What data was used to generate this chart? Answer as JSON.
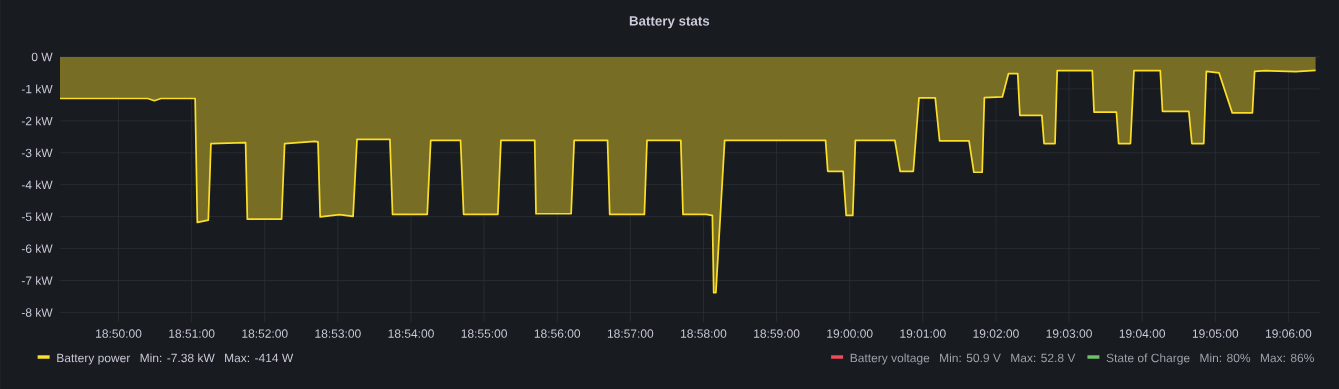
{
  "chart_data": {
    "type": "area",
    "title": "Battery stats",
    "x": [
      18.82,
      18.84,
      18.8415,
      18.843,
      18.8508,
      18.8513,
      18.8538,
      18.8544,
      18.8623,
      18.8627,
      18.8705,
      18.8712,
      18.878,
      18.8788,
      18.8793,
      18.8837,
      18.8868,
      18.8877,
      18.8952,
      18.8958,
      18.9037,
      18.9045,
      18.9113,
      18.912,
      18.9198,
      18.9205,
      18.9282,
      18.9285,
      18.9365,
      18.9372,
      18.9448,
      18.9453,
      18.9532,
      18.9538,
      18.9615,
      18.962,
      18.9672,
      18.9687,
      18.969,
      18.9695,
      18.9715,
      18.9945,
      18.995,
      18.9985,
      18.9992,
      19.0007,
      19.0013,
      19.0103,
      19.0115,
      19.0145,
      19.0158,
      19.0195,
      19.0205,
      19.0272,
      19.0283,
      19.0302,
      19.0307,
      19.0348,
      19.0362,
      19.0383,
      19.0388,
      19.0438,
      19.0443,
      19.0468,
      19.0473,
      19.0553,
      19.0557,
      19.0608,
      19.0613,
      19.064,
      19.0648,
      19.0708,
      19.0713,
      19.0773,
      19.078,
      19.0807,
      19.0813,
      19.0842,
      19.0872,
      19.0918,
      19.0923,
      19.0948,
      19.1017,
      19.1062
    ],
    "series": [
      {
        "name": "Battery power",
        "color": "#fade2a",
        "values": [
          -1.3,
          -1.3,
          -1.37,
          -1.3,
          -1.3,
          -5.18,
          -5.11,
          -2.71,
          -2.68,
          -5.08,
          -5.08,
          -2.71,
          -2.64,
          -2.66,
          -5.01,
          -4.94,
          -4.99,
          -2.58,
          -2.58,
          -4.93,
          -4.93,
          -2.61,
          -2.61,
          -4.93,
          -4.93,
          -2.61,
          -2.61,
          -4.91,
          -4.91,
          -2.61,
          -2.61,
          -4.93,
          -4.93,
          -2.61,
          -2.61,
          -4.93,
          -4.93,
          -4.96,
          -7.38,
          -7.38,
          -2.61,
          -2.61,
          -3.58,
          -3.58,
          -4.96,
          -4.96,
          -2.61,
          -2.61,
          -3.58,
          -3.58,
          -1.28,
          -1.28,
          -2.63,
          -2.63,
          -3.61,
          -3.61,
          -1.27,
          -1.25,
          -0.52,
          -0.52,
          -1.83,
          -1.83,
          -2.71,
          -2.71,
          -0.43,
          -0.43,
          -1.73,
          -1.73,
          -2.71,
          -2.71,
          -0.43,
          -0.43,
          -1.7,
          -1.7,
          -2.71,
          -2.71,
          -0.45,
          -0.5,
          -1.75,
          -1.75,
          -0.45,
          -0.43,
          -0.46,
          -0.42
        ]
      },
      {
        "name": "Battery voltage",
        "color": "#f2495c",
        "values": [
          null,
          null,
          null,
          null,
          null,
          null,
          null,
          null,
          null,
          null,
          null,
          null,
          null,
          null,
          null,
          null,
          null,
          null,
          null,
          null,
          null,
          null,
          null,
          null,
          null,
          null,
          null,
          null,
          null,
          null,
          null,
          null,
          null,
          null,
          null,
          null,
          null,
          null,
          null,
          null,
          null,
          null,
          null,
          null,
          null,
          null,
          null,
          null,
          null,
          null,
          null,
          null,
          null,
          null,
          null,
          null,
          null,
          null,
          null,
          null,
          null,
          null,
          null,
          null,
          null,
          null,
          null,
          null,
          null,
          null,
          null,
          null,
          null,
          null,
          null,
          null,
          null,
          null,
          null,
          null,
          null,
          null,
          null,
          null
        ]
      },
      {
        "name": "State of Charge",
        "color": "#73bf69",
        "values": [
          null,
          null,
          null,
          null,
          null,
          null,
          null,
          null,
          null,
          null,
          null,
          null,
          null,
          null,
          null,
          null,
          null,
          null,
          null,
          null,
          null,
          null,
          null,
          null,
          null,
          null,
          null,
          null,
          null,
          null,
          null,
          null,
          null,
          null,
          null,
          null,
          null,
          null,
          null,
          null,
          null,
          null,
          null,
          null,
          null,
          null,
          null,
          null,
          null,
          null,
          null,
          null,
          null,
          null,
          null,
          null,
          null,
          null,
          null,
          null,
          null,
          null,
          null,
          null,
          null,
          null,
          null,
          null,
          null,
          null,
          null,
          null,
          null,
          null,
          null,
          null,
          null,
          null,
          null,
          null,
          null,
          null,
          null,
          null
        ]
      }
    ],
    "annotations": [
      "Min: -7.38 kW",
      "Max: -414 W",
      "Min: 50.9 V",
      "Max: 52.8 V",
      "Min: 80%",
      "Max: 86%"
    ],
    "xlim": [
      18.82,
      19.1072
    ],
    "xticks": [
      {
        "value": 18.833333,
        "label": "18:50:00"
      },
      {
        "value": 18.85,
        "label": "18:51:00"
      },
      {
        "value": 18.866667,
        "label": "18:52:00"
      },
      {
        "value": 18.883333,
        "label": "18:53:00"
      },
      {
        "value": 18.9,
        "label": "18:54:00"
      },
      {
        "value": 18.916667,
        "label": "18:55:00"
      },
      {
        "value": 18.933333,
        "label": "18:56:00"
      },
      {
        "value": 18.95,
        "label": "18:57:00"
      },
      {
        "value": 18.966667,
        "label": "18:58:00"
      },
      {
        "value": 18.983333,
        "label": "18:59:00"
      },
      {
        "value": 19.0,
        "label": "19:00:00"
      },
      {
        "value": 19.016667,
        "label": "19:01:00"
      },
      {
        "value": 19.033333,
        "label": "19:02:00"
      },
      {
        "value": 19.05,
        "label": "19:03:00"
      },
      {
        "value": 19.066667,
        "label": "19:04:00"
      },
      {
        "value": 19.083333,
        "label": "19:05:00"
      },
      {
        "value": 19.1,
        "label": "19:06:00"
      }
    ],
    "ylim": [
      -8.3,
      0
    ],
    "yticks": [
      {
        "value": 0,
        "label": "0 W"
      },
      {
        "value": -1,
        "label": "-1 kW"
      },
      {
        "value": -2,
        "label": "-2 kW"
      },
      {
        "value": -3,
        "label": "-3 kW"
      },
      {
        "value": -4,
        "label": "-4 kW"
      },
      {
        "value": -5,
        "label": "-5 kW"
      },
      {
        "value": -6,
        "label": "-6 kW"
      },
      {
        "value": -7,
        "label": "-7 kW"
      },
      {
        "value": -8,
        "label": "-8 kW"
      }
    ],
    "grid": true,
    "legend": "bottom"
  }
}
